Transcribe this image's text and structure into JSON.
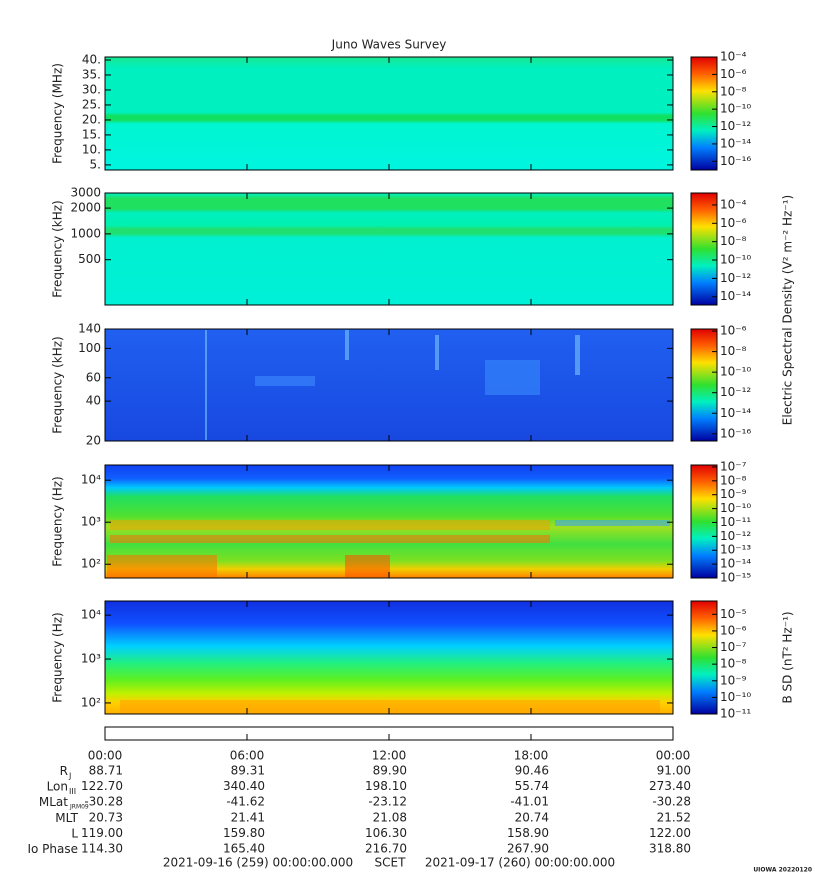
{
  "chart_data": [
    {
      "type": "spectrogram",
      "title": "Juno Waves Survey",
      "y_label": "Frequency (MHz)",
      "yscale": "linear",
      "ylim": [
        3.3,
        41
      ],
      "yticks": [
        {
          "value": 5,
          "label": "5."
        },
        {
          "value": 10,
          "label": "10."
        },
        {
          "value": 15,
          "label": "15."
        },
        {
          "value": 20,
          "label": "20."
        },
        {
          "value": 25,
          "label": "25."
        },
        {
          "value": 30,
          "label": "30."
        },
        {
          "value": 35,
          "label": "35."
        },
        {
          "value": 40,
          "label": "40."
        }
      ],
      "colorbar_lim": [
        -17,
        -4
      ],
      "colorbar_ticks": [
        {
          "value": -4,
          "label": "10⁻⁴"
        },
        {
          "value": -6,
          "label": "10⁻⁶"
        },
        {
          "value": -8,
          "label": "10⁻⁸"
        },
        {
          "value": -10,
          "label": "10⁻¹⁰"
        },
        {
          "value": -12,
          "label": "10⁻¹²"
        },
        {
          "value": -14,
          "label": "10⁻¹⁴"
        },
        {
          "value": -16,
          "label": "10⁻¹⁶"
        }
      ]
    },
    {
      "type": "spectrogram",
      "y_label": "Frequency (kHz)",
      "yscale": "log",
      "ylim": [
        148,
        3000
      ],
      "yticks": [
        500,
        1000,
        2000,
        3000
      ],
      "colorbar_lim": [
        -14.9,
        -2.7
      ],
      "colorbar_ticks": [
        {
          "value": -4,
          "label": "10⁻⁴"
        },
        {
          "value": -6,
          "label": "10⁻⁶"
        },
        {
          "value": -8,
          "label": "10⁻⁸"
        },
        {
          "value": -10,
          "label": "10⁻¹⁰"
        },
        {
          "value": -12,
          "label": "10⁻¹²"
        },
        {
          "value": -14,
          "label": "10⁻¹⁴"
        }
      ],
      "colorbar_label": "Electric Spectral Density (V² m⁻² Hz⁻¹)"
    },
    {
      "type": "spectrogram",
      "y_label": "Frequency (kHz)",
      "yscale": "log",
      "ylim": [
        20,
        140
      ],
      "yticks": [
        20,
        40,
        60,
        100,
        140
      ],
      "colorbar_lim": [
        -16.7,
        -5.8
      ],
      "colorbar_ticks": [
        {
          "value": -6,
          "label": "10⁻⁶"
        },
        {
          "value": -8,
          "label": "10⁻⁸"
        },
        {
          "value": -10,
          "label": "10⁻¹⁰"
        },
        {
          "value": -12,
          "label": "10⁻¹²"
        },
        {
          "value": -14,
          "label": "10⁻¹⁴"
        },
        {
          "value": -16,
          "label": "10⁻¹⁶"
        }
      ]
    },
    {
      "type": "spectrogram",
      "y_label": "Frequency (Hz)",
      "yscale": "log",
      "ylim": [
        47,
        23000
      ],
      "yticks": [
        {
          "value": 100,
          "label": "10²"
        },
        {
          "value": 1000,
          "label": "10³"
        },
        {
          "value": 10000,
          "label": "10⁴"
        }
      ],
      "colorbar_lim": [
        -15,
        -6.86
      ],
      "colorbar_ticks": [
        {
          "value": -7,
          "label": "10⁻⁷"
        },
        {
          "value": -8,
          "label": "10⁻⁸"
        },
        {
          "value": -9,
          "label": "10⁻⁹"
        },
        {
          "value": -10,
          "label": "10⁻¹⁰"
        },
        {
          "value": -11,
          "label": "10⁻¹¹"
        },
        {
          "value": -12,
          "label": "10⁻¹²"
        },
        {
          "value": -13,
          "label": "10⁻¹³"
        },
        {
          "value": -14,
          "label": "10⁻¹⁴"
        },
        {
          "value": -15,
          "label": "10⁻¹⁵"
        }
      ]
    },
    {
      "type": "spectrogram",
      "y_label": "Frequency (Hz)",
      "yscale": "log",
      "ylim": [
        56,
        21000
      ],
      "yticks": [
        {
          "value": 100,
          "label": "10²"
        },
        {
          "value": 1000,
          "label": "10³"
        },
        {
          "value": 10000,
          "label": "10⁴"
        }
      ],
      "colorbar_lim": [
        -11,
        -4.2
      ],
      "colorbar_ticks": [
        {
          "value": -5,
          "label": "10⁻⁵"
        },
        {
          "value": -6,
          "label": "10⁻⁶"
        },
        {
          "value": -7,
          "label": "10⁻⁷"
        },
        {
          "value": -8,
          "label": "10⁻⁸"
        },
        {
          "value": -9,
          "label": "10⁻⁹"
        },
        {
          "value": -10,
          "label": "10⁻¹⁰"
        },
        {
          "value": -11,
          "label": "10⁻¹¹"
        }
      ],
      "colorbar_label": "B SD (nT² Hz⁻¹)"
    }
  ],
  "time_axis": {
    "xlim": [
      0,
      24
    ],
    "xticks": [
      {
        "value": 0,
        "label": "00:00"
      },
      {
        "value": 6,
        "label": "06:00"
      },
      {
        "value": 12,
        "label": "12:00"
      },
      {
        "value": 18,
        "label": "18:00"
      },
      {
        "value": 24,
        "label": "00:00"
      }
    ]
  },
  "ephemeris": {
    "rows": [
      {
        "label": "R",
        "sub": "J",
        "values": [
          "88.71",
          "89.31",
          "89.90",
          "90.46",
          "91.00"
        ]
      },
      {
        "label": "Lon",
        "sub": "III",
        "values": [
          "122.70",
          "340.40",
          "198.10",
          "55.74",
          "273.40"
        ]
      },
      {
        "label": "MLat",
        "sub": "JRM09",
        "values": [
          "-30.28",
          "-41.62",
          "-23.12",
          "-41.01",
          "-30.28"
        ]
      },
      {
        "label": "MLT",
        "values": [
          "20.73",
          "21.41",
          "21.08",
          "20.74",
          "21.52"
        ]
      },
      {
        "label": "L",
        "values": [
          "119.00",
          "159.80",
          "106.30",
          "158.90",
          "122.00"
        ]
      },
      {
        "label": "Io Phase",
        "values": [
          "114.30",
          "165.40",
          "216.70",
          "267.90",
          "318.80"
        ]
      }
    ]
  },
  "footer": {
    "start": "2021-09-16 (259) 00:00:00.000",
    "center": "SCET",
    "end": "2021-09-17 (260) 00:00:00.000",
    "stamp": "UIOWA 20220120"
  }
}
